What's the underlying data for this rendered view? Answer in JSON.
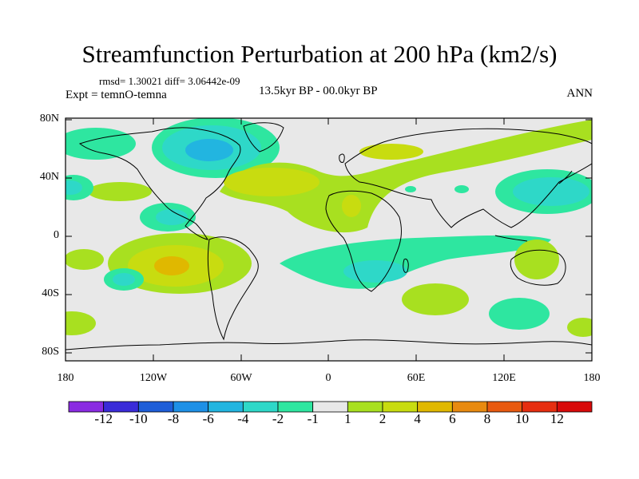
{
  "title": "Streamfunction Perturbation at 200 hPa (km2/s)",
  "stats": "rmsd= 1.30021 diff= 3.06442e-09",
  "experiment": "Expt = temnO-temna",
  "period": "13.5kyr BP - 00.0kyr BP",
  "season": "ANN",
  "y_ticks": [
    "80N",
    "40N",
    "0",
    "40S",
    "80S"
  ],
  "x_ticks": [
    "180",
    "120W",
    "60W",
    "0",
    "60E",
    "120E",
    "180"
  ],
  "colorbar": {
    "labels": [
      "-12",
      "-10",
      "-8",
      "-6",
      "-4",
      "-2",
      "-1",
      "1",
      "2",
      "4",
      "6",
      "8",
      "10",
      "12"
    ],
    "colors": [
      "#8a2be2",
      "#3a2bd8",
      "#1e5ed8",
      "#1e90e6",
      "#22b5e0",
      "#2ed8c8",
      "#2ee6a0",
      "#e8e8e8",
      "#a8e020",
      "#c8dc10",
      "#e0b800",
      "#e88a10",
      "#e85a10",
      "#e62e10",
      "#d80a0a"
    ]
  },
  "colors": {
    "neutral": "#e8e8e8",
    "neg1": "#2ee6a0",
    "neg2": "#2ed8c8",
    "neg4": "#22b5e0",
    "pos1": "#a8e020",
    "pos2": "#c8dc10",
    "pos4": "#e0b800"
  }
}
